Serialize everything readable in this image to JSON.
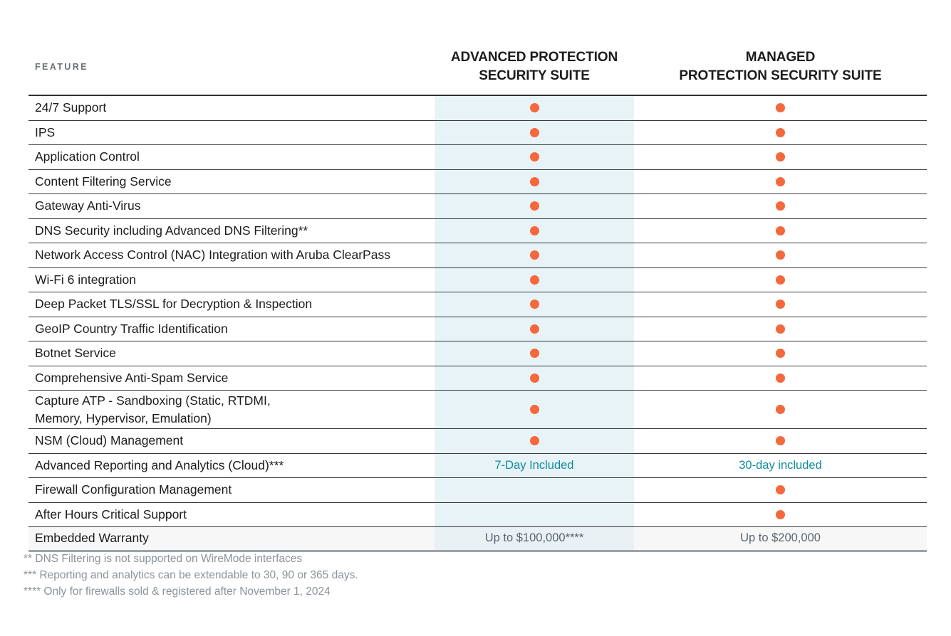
{
  "header": {
    "feature_label": "FEATURE",
    "col_advanced": "ADVANCED PROTECTION\nSECURITY SUITE",
    "col_managed": "MANAGED\nPROTECTION SECURITY SUITE"
  },
  "rows": [
    {
      "feature": "24/7 Support",
      "advanced": {
        "type": "dot"
      },
      "managed": {
        "type": "dot"
      }
    },
    {
      "feature": "IPS",
      "advanced": {
        "type": "dot"
      },
      "managed": {
        "type": "dot"
      }
    },
    {
      "feature": "Application Control",
      "advanced": {
        "type": "dot"
      },
      "managed": {
        "type": "dot"
      }
    },
    {
      "feature": "Content Filtering Service",
      "advanced": {
        "type": "dot"
      },
      "managed": {
        "type": "dot"
      }
    },
    {
      "feature": "Gateway Anti-Virus",
      "advanced": {
        "type": "dot"
      },
      "managed": {
        "type": "dot"
      }
    },
    {
      "feature": "DNS Security including Advanced DNS Filtering**",
      "advanced": {
        "type": "dot"
      },
      "managed": {
        "type": "dot"
      }
    },
    {
      "feature": "Network Access Control (NAC) Integration with Aruba ClearPass",
      "advanced": {
        "type": "dot"
      },
      "managed": {
        "type": "dot"
      }
    },
    {
      "feature": "Wi-Fi 6 integration",
      "advanced": {
        "type": "dot"
      },
      "managed": {
        "type": "dot"
      }
    },
    {
      "feature": "Deep Packet TLS/SSL for Decryption & Inspection",
      "advanced": {
        "type": "dot"
      },
      "managed": {
        "type": "dot"
      }
    },
    {
      "feature": "GeoIP Country Traffic Identification",
      "advanced": {
        "type": "dot"
      },
      "managed": {
        "type": "dot"
      }
    },
    {
      "feature": "Botnet Service",
      "advanced": {
        "type": "dot"
      },
      "managed": {
        "type": "dot"
      }
    },
    {
      "feature": "Comprehensive Anti-Spam Service",
      "advanced": {
        "type": "dot"
      },
      "managed": {
        "type": "dot"
      }
    },
    {
      "feature": "Capture ATP -  Sandboxing (Static, RTDMI,\nMemory, Hypervisor, Emulation)",
      "tall": true,
      "advanced": {
        "type": "dot"
      },
      "managed": {
        "type": "dot"
      }
    },
    {
      "feature": "NSM (Cloud) Management",
      "advanced": {
        "type": "dot"
      },
      "managed": {
        "type": "dot"
      }
    },
    {
      "feature": "Advanced Reporting and Analytics (Cloud)***",
      "advanced": {
        "type": "text",
        "text": "7-Day Included",
        "style": "teal"
      },
      "managed": {
        "type": "text",
        "text": "30-day included",
        "style": "teal"
      }
    },
    {
      "feature": "Firewall Configuration Management",
      "advanced": {
        "type": "empty"
      },
      "managed": {
        "type": "dot"
      }
    },
    {
      "feature": "After Hours Critical Support",
      "advanced": {
        "type": "empty"
      },
      "managed": {
        "type": "dot"
      }
    },
    {
      "feature": "Embedded Warranty",
      "shaded": true,
      "advanced": {
        "type": "text",
        "text": "Up to $100,000****",
        "style": "gray"
      },
      "managed": {
        "type": "text",
        "text": "Up to $200,000",
        "style": "gray"
      }
    }
  ],
  "footnotes": [
    "** DNS Filtering is not supported on WireMode interfaces",
    "*** Reporting and analytics can be extendable to 30, 90 or 365 days.",
    "**** Only for firewalls sold & registered after November 1, 2024"
  ],
  "colors": {
    "dot_orange": "#F4683C",
    "advanced_column_bg": "#E8F3F7",
    "teal_text": "#0F8C9B",
    "warranty_text_gray": "#5A6570",
    "footnote_gray": "#8C939A",
    "row_border": "#33383D",
    "shaded_row_bg": "#F7F7F7"
  }
}
